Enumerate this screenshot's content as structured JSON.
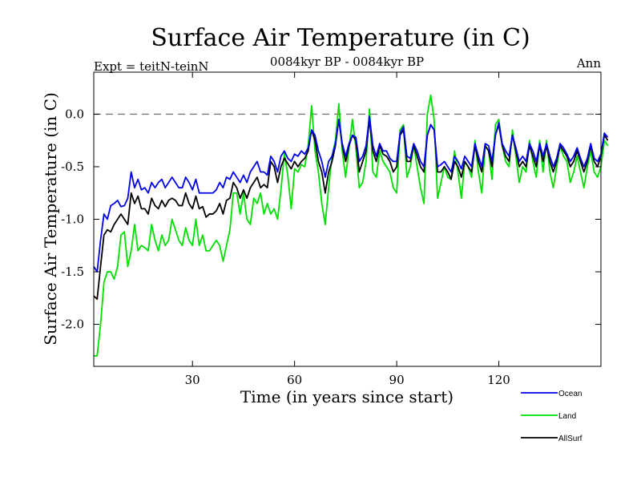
{
  "chart_data": {
    "type": "line",
    "title": "Surface Air Temperature (in C)",
    "subtitle": "0084kyr BP - 0084kyr BP",
    "expt_label": "Expt = teitN-teinN",
    "period_label": "Ann",
    "xlabel": "Time (in years since start)",
    "ylabel": "Surface Air Temperature (in C)",
    "xlim": [
      1,
      150
    ],
    "ylim": [
      -2.4,
      0.4
    ],
    "x_ticks": [
      30,
      60,
      90,
      120
    ],
    "x_tick_labels": [
      "30",
      "60",
      "90",
      "120"
    ],
    "y_ticks": [
      0.0,
      -0.5,
      -1.0,
      -1.5,
      -2.0
    ],
    "y_tick_labels": [
      "0.0",
      "-0.5",
      "-1.0",
      "-1.5",
      "-2.0"
    ],
    "reference_line": 0.0,
    "legend_position": "bottom-right",
    "series": [
      {
        "name": "Land",
        "color": "#00e000",
        "x_start": 1,
        "values": [
          -2.3,
          -2.3,
          -2.0,
          -1.6,
          -1.5,
          -1.5,
          -1.57,
          -1.45,
          -1.15,
          -1.12,
          -1.45,
          -1.3,
          -1.05,
          -1.3,
          -1.25,
          -1.27,
          -1.3,
          -1.05,
          -1.2,
          -1.3,
          -1.15,
          -1.25,
          -1.2,
          -1.0,
          -1.1,
          -1.2,
          -1.25,
          -1.08,
          -1.2,
          -1.25,
          -1.0,
          -1.25,
          -1.15,
          -1.3,
          -1.3,
          -1.25,
          -1.2,
          -1.25,
          -1.4,
          -1.25,
          -1.1,
          -0.75,
          -0.75,
          -0.95,
          -0.75,
          -1.0,
          -1.05,
          -0.8,
          -0.85,
          -0.75,
          -0.95,
          -0.85,
          -0.95,
          -0.9,
          -1.0,
          -0.72,
          -0.37,
          -0.58,
          -0.9,
          -0.52,
          -0.55,
          -0.48,
          -0.5,
          -0.3,
          0.08,
          -0.35,
          -0.55,
          -0.85,
          -1.05,
          -0.7,
          -0.4,
          -0.25,
          0.1,
          -0.35,
          -0.6,
          -0.32,
          -0.05,
          -0.32,
          -0.7,
          -0.65,
          -0.45,
          0.05,
          -0.55,
          -0.6,
          -0.35,
          -0.45,
          -0.5,
          -0.55,
          -0.7,
          -0.75,
          -0.15,
          -0.1,
          -0.6,
          -0.5,
          -0.3,
          -0.5,
          -0.7,
          -0.85,
          0.0,
          0.18,
          -0.05,
          -0.8,
          -0.65,
          -0.5,
          -0.6,
          -0.62,
          -0.35,
          -0.55,
          -0.8,
          -0.45,
          -0.5,
          -0.6,
          -0.25,
          -0.55,
          -0.75,
          -0.3,
          -0.35,
          -0.62,
          -0.1,
          -0.05,
          -0.3,
          -0.45,
          -0.5,
          -0.15,
          -0.4,
          -0.65,
          -0.5,
          -0.55,
          -0.25,
          -0.45,
          -0.6,
          -0.25,
          -0.55,
          -0.25,
          -0.55,
          -0.7,
          -0.5,
          -0.3,
          -0.4,
          -0.45,
          -0.65,
          -0.55,
          -0.4,
          -0.55,
          -0.7,
          -0.5,
          -0.35,
          -0.55,
          -0.6,
          -0.5,
          -0.25,
          -0.3
        ]
      },
      {
        "name": "AllSurf",
        "color": "#000000",
        "x_start": 1,
        "values": [
          -1.73,
          -1.76,
          -1.45,
          -1.15,
          -1.1,
          -1.12,
          -1.05,
          -1.0,
          -0.95,
          -1.0,
          -1.05,
          -0.75,
          -0.85,
          -0.78,
          -0.9,
          -0.9,
          -0.95,
          -0.8,
          -0.87,
          -0.9,
          -0.82,
          -0.88,
          -0.82,
          -0.8,
          -0.82,
          -0.87,
          -0.87,
          -0.75,
          -0.85,
          -0.9,
          -0.78,
          -0.9,
          -0.88,
          -0.98,
          -0.95,
          -0.95,
          -0.92,
          -0.85,
          -0.95,
          -0.82,
          -0.8,
          -0.65,
          -0.7,
          -0.8,
          -0.72,
          -0.8,
          -0.7,
          -0.65,
          -0.6,
          -0.7,
          -0.67,
          -0.7,
          -0.45,
          -0.5,
          -0.65,
          -0.5,
          -0.42,
          -0.47,
          -0.52,
          -0.45,
          -0.5,
          -0.45,
          -0.42,
          -0.35,
          -0.15,
          -0.25,
          -0.45,
          -0.55,
          -0.75,
          -0.55,
          -0.45,
          -0.3,
          -0.05,
          -0.3,
          -0.45,
          -0.3,
          -0.2,
          -0.25,
          -0.55,
          -0.45,
          -0.35,
          -0.05,
          -0.35,
          -0.45,
          -0.3,
          -0.38,
          -0.4,
          -0.45,
          -0.55,
          -0.5,
          -0.2,
          -0.15,
          -0.45,
          -0.45,
          -0.3,
          -0.4,
          -0.5,
          -0.55,
          -0.2,
          -0.1,
          -0.15,
          -0.55,
          -0.55,
          -0.5,
          -0.55,
          -0.62,
          -0.45,
          -0.5,
          -0.6,
          -0.45,
          -0.5,
          -0.55,
          -0.3,
          -0.45,
          -0.55,
          -0.3,
          -0.35,
          -0.5,
          -0.2,
          -0.1,
          -0.3,
          -0.4,
          -0.45,
          -0.2,
          -0.35,
          -0.5,
          -0.45,
          -0.5,
          -0.3,
          -0.4,
          -0.5,
          -0.3,
          -0.45,
          -0.3,
          -0.45,
          -0.55,
          -0.45,
          -0.3,
          -0.35,
          -0.4,
          -0.5,
          -0.45,
          -0.35,
          -0.45,
          -0.55,
          -0.45,
          -0.3,
          -0.45,
          -0.5,
          -0.4,
          -0.2,
          -0.25
        ]
      },
      {
        "name": "Ocean",
        "color": "#0000ee",
        "x_start": 1,
        "values": [
          -1.45,
          -1.5,
          -1.2,
          -0.95,
          -1.0,
          -0.87,
          -0.85,
          -0.82,
          -0.88,
          -0.87,
          -0.8,
          -0.55,
          -0.7,
          -0.62,
          -0.72,
          -0.7,
          -0.75,
          -0.65,
          -0.7,
          -0.65,
          -0.62,
          -0.7,
          -0.65,
          -0.6,
          -0.65,
          -0.7,
          -0.7,
          -0.6,
          -0.65,
          -0.72,
          -0.62,
          -0.75,
          -0.75,
          -0.75,
          -0.75,
          -0.75,
          -0.72,
          -0.65,
          -0.7,
          -0.6,
          -0.62,
          -0.55,
          -0.6,
          -0.65,
          -0.58,
          -0.65,
          -0.55,
          -0.5,
          -0.45,
          -0.55,
          -0.55,
          -0.58,
          -0.4,
          -0.45,
          -0.55,
          -0.4,
          -0.35,
          -0.42,
          -0.45,
          -0.38,
          -0.4,
          -0.35,
          -0.38,
          -0.32,
          -0.15,
          -0.2,
          -0.35,
          -0.45,
          -0.6,
          -0.45,
          -0.4,
          -0.28,
          -0.05,
          -0.28,
          -0.4,
          -0.28,
          -0.2,
          -0.22,
          -0.45,
          -0.4,
          -0.3,
          -0.02,
          -0.3,
          -0.4,
          -0.28,
          -0.35,
          -0.35,
          -0.42,
          -0.45,
          -0.45,
          -0.18,
          -0.12,
          -0.4,
          -0.42,
          -0.28,
          -0.35,
          -0.45,
          -0.5,
          -0.2,
          -0.1,
          -0.15,
          -0.5,
          -0.48,
          -0.45,
          -0.5,
          -0.55,
          -0.4,
          -0.45,
          -0.52,
          -0.4,
          -0.45,
          -0.5,
          -0.28,
          -0.4,
          -0.5,
          -0.28,
          -0.3,
          -0.45,
          -0.2,
          -0.08,
          -0.28,
          -0.35,
          -0.4,
          -0.2,
          -0.32,
          -0.45,
          -0.4,
          -0.45,
          -0.28,
          -0.35,
          -0.45,
          -0.28,
          -0.4,
          -0.28,
          -0.4,
          -0.5,
          -0.42,
          -0.28,
          -0.32,
          -0.38,
          -0.45,
          -0.4,
          -0.32,
          -0.42,
          -0.5,
          -0.42,
          -0.28,
          -0.42,
          -0.45,
          -0.38,
          -0.18,
          -0.22
        ]
      }
    ]
  }
}
